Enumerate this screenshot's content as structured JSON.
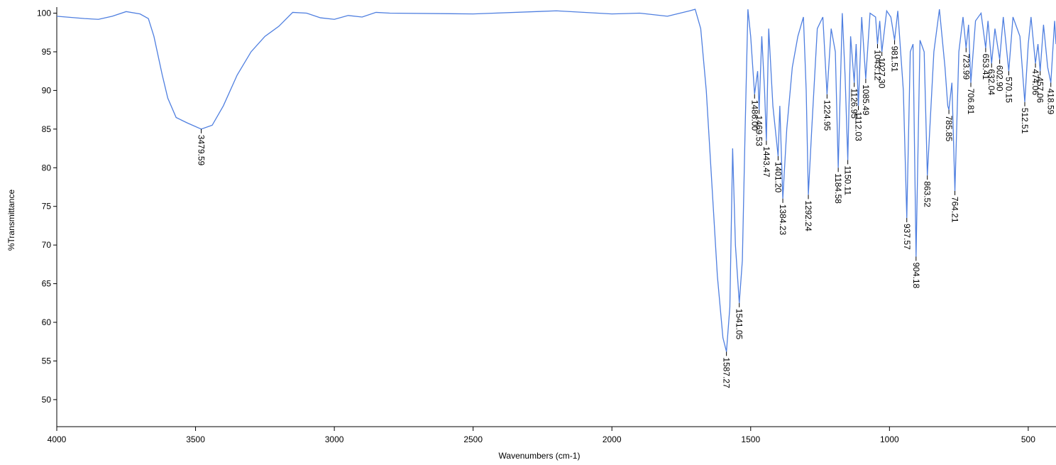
{
  "chart_data": {
    "type": "line",
    "x_label": "Wavenumbers (cm-1)",
    "y_label": "%Transmittance",
    "xlim": [
      4000,
      400
    ],
    "ylim": [
      46.5,
      100.6
    ],
    "xticks": [
      4000,
      3500,
      3000,
      2500,
      2000,
      1500,
      1000,
      500
    ],
    "yticks": [
      50,
      55,
      60,
      65,
      70,
      75,
      80,
      85,
      90,
      95,
      100
    ],
    "series": [
      {
        "color": "#4f7fe0",
        "x": [
          4000,
          3900,
          3850,
          3800,
          3750,
          3700,
          3670,
          3650,
          3620,
          3600,
          3570,
          3530,
          3479.59,
          3440,
          3400,
          3350,
          3300,
          3250,
          3200,
          3150,
          3100,
          3050,
          3000,
          2950,
          2900,
          2850,
          2800,
          2500,
          2200,
          2000,
          1900,
          1800,
          1720,
          1700,
          1680,
          1660,
          1640,
          1620,
          1600,
          1587.27,
          1575,
          1565,
          1555,
          1541.05,
          1530,
          1520,
          1510,
          1500,
          1486.0,
          1475,
          1469.53,
          1460,
          1450,
          1443.47,
          1435,
          1420,
          1401.2,
          1395,
          1384.23,
          1370,
          1350,
          1330,
          1310,
          1300,
          1292.24,
          1280,
          1260,
          1240,
          1224.95,
          1210,
          1195,
          1184.58,
          1170,
          1160,
          1150.11,
          1140,
          1126.95,
          1120,
          1112.03,
          1100,
          1085.49,
          1070,
          1050,
          1043.12,
          1035,
          1027.3,
          1010,
          995,
          981.51,
          970,
          950,
          937.57,
          925,
          915,
          904.18,
          890,
          875,
          863.52,
          840,
          820,
          800,
          790,
          785.85,
          775,
          764.21,
          750,
          735,
          723.99,
          715,
          706.81,
          690,
          670,
          653.41,
          645,
          632.04,
          620,
          602.9,
          590,
          570.15,
          555,
          530,
          512.51,
          500,
          490,
          474.06,
          465,
          457.06,
          445,
          430,
          418.59,
          405,
          400
        ],
        "values": [
          99.6,
          99.3,
          99.2,
          99.6,
          100.2,
          99.9,
          99.3,
          97,
          92,
          89,
          86.5,
          85.8,
          85.0,
          85.5,
          88,
          92,
          95,
          97,
          98.3,
          100.1,
          100,
          99.4,
          99.2,
          99.7,
          99.5,
          100.1,
          100,
          99.9,
          100.3,
          99.9,
          100,
          99.6,
          100.3,
          100.5,
          98,
          90,
          78,
          66,
          58,
          56.2,
          62,
          82.5,
          70,
          62.5,
          68,
          85,
          100.5,
          97,
          89.5,
          92.5,
          87.5,
          97,
          90,
          83.5,
          98,
          88,
          81.5,
          88,
          76,
          85,
          93,
          97,
          99.5,
          90,
          76.5,
          85,
          98,
          99.5,
          89.5,
          98,
          95,
          80,
          100,
          92,
          81,
          97,
          91,
          96,
          88,
          99.5,
          91.5,
          100,
          99.5,
          96,
          99,
          95,
          100.3,
          99.5,
          96.5,
          100.3,
          90,
          73.5,
          95,
          96,
          68.5,
          96.5,
          95,
          79,
          95,
          100.5,
          93,
          88,
          87.5,
          91,
          77,
          95,
          99.5,
          95.5,
          98.5,
          91,
          99,
          100,
          95.5,
          99,
          93.5,
          98,
          94,
          99.5,
          92.5,
          99.5,
          97,
          88.5,
          96,
          99.5,
          93.5,
          96,
          92.5,
          98.5,
          93,
          91,
          99,
          96
        ]
      }
    ],
    "peaks": {
      "x": [
        3479.59,
        1587.27,
        1541.05,
        1486.0,
        1469.53,
        1443.47,
        1401.2,
        1384.23,
        1292.24,
        1224.95,
        1184.58,
        1150.11,
        1126.95,
        1112.03,
        1085.49,
        1043.12,
        1027.3,
        981.51,
        937.57,
        904.18,
        863.52,
        785.85,
        764.21,
        723.99,
        706.81,
        653.41,
        632.04,
        602.9,
        570.15,
        512.51,
        474.06,
        457.06,
        418.59
      ],
      "y": [
        85.0,
        56.2,
        62.5,
        89.5,
        87.5,
        83.5,
        81.5,
        76,
        76.5,
        89.5,
        80,
        81,
        91,
        88,
        91.5,
        96,
        95,
        96.5,
        73.5,
        68.5,
        79,
        87.5,
        77,
        95.5,
        91,
        95.5,
        93.5,
        94,
        92.5,
        88.5,
        93.5,
        92.5,
        91
      ],
      "labels": [
        "3479.59",
        "1587.27",
        "1541.05",
        "1486.00",
        "1469.53",
        "1443.47",
        "1401.20",
        "1384.23",
        "1292.24",
        "1224.95",
        "1184.58",
        "1150.11",
        "1126.95",
        "1112.03",
        "1085.49",
        "1043.12",
        "1027.30",
        "981.51",
        "937.57",
        "904.18",
        "863.52",
        "785.85",
        "764.21",
        "723.99",
        "706.81",
        "653.41",
        "632.04",
        "602.90",
        "570.15",
        "512.51",
        "474.06",
        "457.06",
        "418.59"
      ]
    }
  }
}
